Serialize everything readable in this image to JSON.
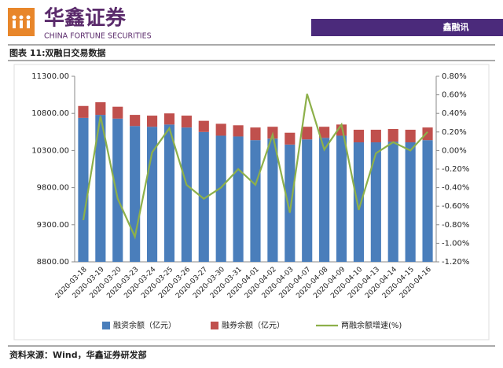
{
  "header": {
    "brand": "华鑫证券",
    "brand_en": "CHINA FORTUNE SECURITIES",
    "section": "鑫融讯"
  },
  "chart_data": {
    "type": "bar",
    "title": "图表 11:双融日交易数据",
    "categories": [
      "2020-03-18",
      "2020-03-19",
      "2020-03-20",
      "2020-03-23",
      "2020-03-24",
      "2020-03-25",
      "2020-03-26",
      "2020-03-27",
      "2020-03-30",
      "2020-03-31",
      "2020-04-01",
      "2020-04-02",
      "2020-04-03",
      "2020-04-07",
      "2020-04-08",
      "2020-04-09",
      "2020-04-10",
      "2020-04-13",
      "2020-04-14",
      "2020-04-15",
      "2020-04-16"
    ],
    "series": [
      {
        "name": "融资余额（亿元）",
        "color": "#4a7ebb",
        "values": [
          10740,
          10780,
          10730,
          10630,
          10620,
          10650,
          10610,
          10550,
          10500,
          10490,
          10440,
          10460,
          10380,
          10450,
          10470,
          10500,
          10410,
          10410,
          10420,
          10410,
          10440
        ]
      },
      {
        "name": "融券余额（亿元）",
        "color": "#c0504d",
        "values": [
          160,
          170,
          160,
          150,
          150,
          150,
          160,
          150,
          160,
          150,
          170,
          160,
          160,
          170,
          150,
          150,
          170,
          170,
          170,
          170,
          170
        ]
      },
      {
        "name": "两融余额增速(%)",
        "color": "#8db04a",
        "type": "line",
        "axis": "y2",
        "values": [
          -0.75,
          0.37,
          -0.52,
          -0.93,
          -0.02,
          0.24,
          -0.37,
          -0.52,
          -0.4,
          -0.2,
          -0.37,
          0.17,
          -0.67,
          0.61,
          0.01,
          0.28,
          -0.64,
          -0.03,
          0.09,
          0.0,
          0.2
        ]
      }
    ],
    "stacked": true,
    "ylim": [
      8800,
      11300
    ],
    "yticks": [
      {
        "value": 8800,
        "label": "8800.00"
      },
      {
        "value": 9300,
        "label": "9300.00"
      },
      {
        "value": 9800,
        "label": "9800.00"
      },
      {
        "value": 10300,
        "label": "10300.00"
      },
      {
        "value": 10800,
        "label": "10800.00"
      },
      {
        "value": 11300,
        "label": "11300.00"
      }
    ],
    "y2lim": [
      -1.2,
      0.8
    ],
    "y2ticks": [
      {
        "value": -1.2,
        "label": "-1.20%"
      },
      {
        "value": -1.0,
        "label": "-1.00%"
      },
      {
        "value": -0.8,
        "label": "-0.80%"
      },
      {
        "value": -0.6,
        "label": "-0.60%"
      },
      {
        "value": -0.4,
        "label": "-0.40%"
      },
      {
        "value": -0.2,
        "label": "-0.20%"
      },
      {
        "value": 0,
        "label": "0.00%"
      },
      {
        "value": 0.2,
        "label": "0.20%"
      },
      {
        "value": 0.4,
        "label": "0.40%"
      },
      {
        "value": 0.6,
        "label": "0.60%"
      },
      {
        "value": 0.8,
        "label": "0.80%"
      }
    ],
    "legend": "bottom",
    "grid": false
  },
  "footer": {
    "source": "资料来源：Wind，华鑫证券研发部"
  }
}
